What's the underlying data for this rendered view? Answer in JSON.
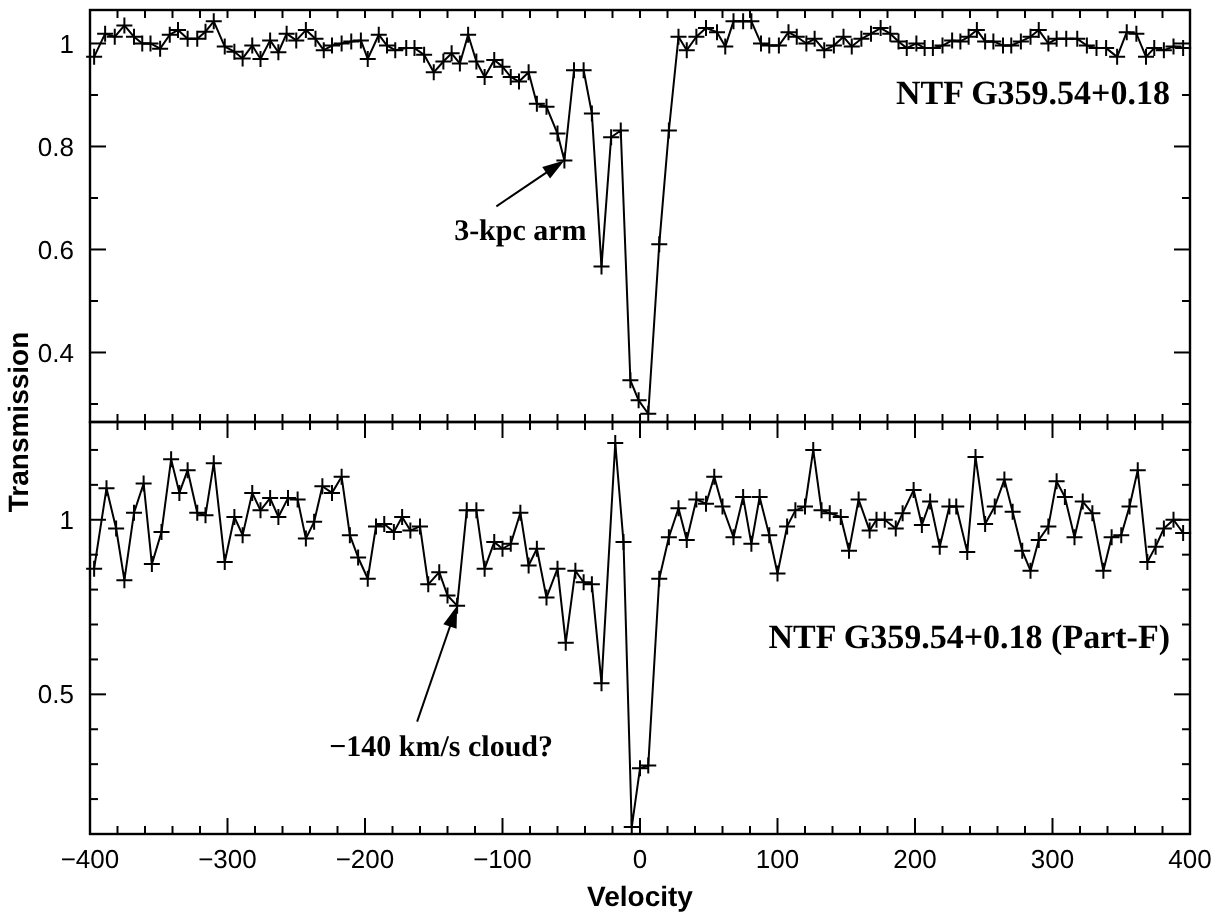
{
  "chart_data": [
    {
      "type": "line",
      "ylabel": "Transmission",
      "xlim": [
        -400,
        400
      ],
      "ylim": [
        0.265,
        1.065
      ],
      "xticks": [
        {
          "value": -400,
          "label": null
        },
        {
          "value": -380,
          "label": null
        },
        {
          "value": -360,
          "label": null
        },
        {
          "value": -340,
          "label": null
        },
        {
          "value": -320,
          "label": null
        },
        {
          "value": -300,
          "label": null
        },
        {
          "value": -280,
          "label": null
        },
        {
          "value": -260,
          "label": null
        },
        {
          "value": -240,
          "label": null
        },
        {
          "value": -220,
          "label": null
        },
        {
          "value": -200,
          "label": null
        },
        {
          "value": -180,
          "label": null
        },
        {
          "value": -160,
          "label": null
        },
        {
          "value": -140,
          "label": null
        },
        {
          "value": -120,
          "label": null
        },
        {
          "value": -100,
          "label": null
        },
        {
          "value": -80,
          "label": null
        },
        {
          "value": -60,
          "label": null
        },
        {
          "value": -40,
          "label": null
        },
        {
          "value": -20,
          "label": null
        },
        {
          "value": 0,
          "label": null
        },
        {
          "value": 20,
          "label": null
        },
        {
          "value": 40,
          "label": null
        },
        {
          "value": 60,
          "label": null
        },
        {
          "value": 80,
          "label": null
        },
        {
          "value": 100,
          "label": null
        },
        {
          "value": 120,
          "label": null
        },
        {
          "value": 140,
          "label": null
        },
        {
          "value": 160,
          "label": null
        },
        {
          "value": 180,
          "label": null
        },
        {
          "value": 200,
          "label": null
        },
        {
          "value": 220,
          "label": null
        },
        {
          "value": 240,
          "label": null
        },
        {
          "value": 260,
          "label": null
        },
        {
          "value": 280,
          "label": null
        },
        {
          "value": 300,
          "label": null
        },
        {
          "value": 320,
          "label": null
        },
        {
          "value": 340,
          "label": null
        },
        {
          "value": 360,
          "label": null
        },
        {
          "value": 380,
          "label": null
        },
        {
          "value": 400,
          "label": null
        }
      ],
      "yticks": [
        {
          "value": 0.3,
          "label": null
        },
        0.4,
        {
          "value": 0.5,
          "label": null
        },
        0.6,
        {
          "value": 0.7,
          "label": null
        },
        0.8,
        {
          "value": 0.9,
          "label": null
        },
        1
      ],
      "tick_labels": "y",
      "grid": false,
      "marker": "cross",
      "line_style": "solid",
      "annotations": [
        "NTF G359.54+0.18",
        {
          "text": "3-kpc arm",
          "x": -55,
          "y": 0.773
        }
      ],
      "series": [
        {
          "color": "#000000",
          "x": [
            -397,
            -389,
            -382,
            -375,
            -368,
            -362,
            -356,
            -349,
            -342,
            -336,
            -329,
            -322,
            -316,
            -310,
            -302,
            -295,
            -289,
            -282,
            -276,
            -269,
            -263,
            -257,
            -250,
            -243,
            -236,
            -230,
            -224,
            -217,
            -210,
            -203,
            -198,
            -190,
            -184,
            -178,
            -170,
            -164,
            -157,
            -150,
            -143,
            -137,
            -131,
            -125,
            -119,
            -113,
            -106,
            -100,
            -94,
            -88,
            -81,
            -75,
            -68,
            -60,
            -55,
            -48,
            -41,
            -35,
            -28,
            -21,
            -14,
            -7,
            -1,
            6,
            14,
            21,
            28,
            34,
            41,
            48,
            56,
            62,
            68,
            75,
            81,
            88,
            94,
            101,
            108,
            114,
            121,
            127,
            134,
            141,
            148,
            154,
            161,
            168,
            175,
            182,
            188,
            194,
            201,
            207,
            213,
            220,
            227,
            233,
            239,
            245,
            251,
            257,
            264,
            270,
            277,
            284,
            290,
            297,
            303,
            310,
            318,
            325,
            332,
            339,
            347,
            354,
            361,
            368,
            374,
            381,
            388,
            395
          ],
          "values": [
            0.974,
            1.019,
            1.013,
            1.035,
            1.013,
            1.0,
            1.0,
            0.99,
            1.017,
            1.026,
            1.009,
            1.009,
            1.023,
            1.043,
            0.994,
            0.984,
            0.971,
            0.996,
            0.97,
            1.006,
            0.983,
            1.019,
            1.006,
            1.026,
            1.009,
            0.987,
            0.996,
            1.0,
            1.004,
            1.006,
            0.97,
            1.017,
            0.996,
            0.987,
            0.991,
            0.991,
            0.978,
            0.944,
            0.965,
            0.981,
            0.961,
            1.017,
            0.965,
            0.935,
            0.968,
            0.955,
            0.935,
            0.926,
            0.944,
            0.883,
            0.877,
            0.825,
            0.773,
            0.948,
            0.948,
            0.864,
            0.567,
            0.818,
            0.831,
            0.346,
            0.307,
            0.281,
            0.61,
            0.831,
            1.013,
            0.987,
            1.013,
            1.03,
            1.022,
            0.994,
            1.043,
            1.043,
            1.043,
            1.0,
            0.996,
            0.996,
            1.022,
            1.013,
            1.0,
            1.009,
            0.987,
            0.996,
            1.013,
            0.994,
            1.009,
            1.019,
            1.03,
            1.019,
            1.004,
            0.991,
            1.0,
            0.991,
            0.991,
            0.996,
            1.006,
            1.004,
            1.013,
            1.026,
            1.004,
            1.004,
            0.996,
            0.996,
            1.004,
            1.013,
            1.026,
            1.0,
            1.009,
            1.009,
            1.009,
            0.996,
            0.991,
            0.991,
            0.974,
            1.022,
            1.019,
            0.974,
            0.991,
            0.987,
            0.994,
            0.991
          ]
        }
      ]
    },
    {
      "type": "line",
      "xlabel": "Velocity",
      "xlim": [
        -400,
        400
      ],
      "ylim": [
        0.1,
        1.28
      ],
      "xticks": [
        -400,
        {
          "value": -380,
          "label": null
        },
        {
          "value": -360,
          "label": null
        },
        {
          "value": -340,
          "label": null
        },
        {
          "value": -320,
          "label": null
        },
        -300,
        {
          "value": -280,
          "label": null
        },
        {
          "value": -260,
          "label": null
        },
        {
          "value": -240,
          "label": null
        },
        {
          "value": -220,
          "label": null
        },
        -200,
        {
          "value": -180,
          "label": null
        },
        {
          "value": -160,
          "label": null
        },
        {
          "value": -140,
          "label": null
        },
        {
          "value": -120,
          "label": null
        },
        -100,
        {
          "value": -80,
          "label": null
        },
        {
          "value": -60,
          "label": null
        },
        {
          "value": -40,
          "label": null
        },
        {
          "value": -20,
          "label": null
        },
        0,
        {
          "value": 20,
          "label": null
        },
        {
          "value": 40,
          "label": null
        },
        {
          "value": 60,
          "label": null
        },
        {
          "value": 80,
          "label": null
        },
        100,
        {
          "value": 120,
          "label": null
        },
        {
          "value": 140,
          "label": null
        },
        {
          "value": 160,
          "label": null
        },
        {
          "value": 180,
          "label": null
        },
        200,
        {
          "value": 220,
          "label": null
        },
        {
          "value": 240,
          "label": null
        },
        {
          "value": 260,
          "label": null
        },
        {
          "value": 280,
          "label": null
        },
        300,
        {
          "value": 320,
          "label": null
        },
        {
          "value": 340,
          "label": null
        },
        {
          "value": 360,
          "label": null
        },
        {
          "value": 380,
          "label": null
        },
        400
      ],
      "yticks": [
        {
          "value": 0.2,
          "label": null
        },
        {
          "value": 0.3,
          "label": null
        },
        {
          "value": 0.4,
          "label": null
        },
        0.5,
        {
          "value": 0.6,
          "label": null
        },
        {
          "value": 0.7,
          "label": null
        },
        {
          "value": 0.8,
          "label": null
        },
        {
          "value": 0.9,
          "label": null
        },
        1,
        {
          "value": 1.1,
          "label": null
        },
        {
          "value": 1.2,
          "label": null
        }
      ],
      "grid": false,
      "marker": "cross",
      "line_style": "solid",
      "annotations": [
        "NTF G359.54+0.18 (Part-F)",
        {
          "text": "−140 km/s cloud?",
          "x": -133,
          "y": 0.754
        }
      ],
      "series": [
        {
          "color": "#000000",
          "x": [
            -397,
            -388,
            -381,
            -375,
            -368,
            -361,
            -355,
            -348,
            -341,
            -335,
            -329,
            -322,
            -316,
            -310,
            -302,
            -295,
            -289,
            -282,
            -276,
            -269,
            -263,
            -256,
            -249,
            -243,
            -237,
            -231,
            -224,
            -217,
            -211,
            -205,
            -198,
            -192,
            -186,
            -179,
            -173,
            -167,
            -160,
            -154,
            -146,
            -140,
            -133,
            -126,
            -119,
            -113,
            -106,
            -100,
            -94,
            -87,
            -81,
            -75,
            -68,
            -60,
            -54,
            -47,
            -41,
            -35,
            -28,
            -18,
            -12,
            -6,
            0,
            6,
            14,
            21,
            28,
            34,
            41,
            48,
            54,
            60,
            68,
            75,
            81,
            87,
            94,
            100,
            107,
            113,
            120,
            126,
            132,
            138,
            146,
            152,
            159,
            167,
            172,
            178,
            186,
            191,
            199,
            205,
            211,
            218,
            225,
            230,
            238,
            244,
            251,
            258,
            265,
            271,
            278,
            284,
            290,
            297,
            303,
            309,
            316,
            322,
            329,
            337,
            343,
            350,
            356,
            362,
            369,
            375,
            381,
            388,
            395
          ],
          "values": [
            0.86,
            1.09,
            0.975,
            0.827,
            1.02,
            1.104,
            0.873,
            0.965,
            1.173,
            1.077,
            1.142,
            1.02,
            1.013,
            1.162,
            0.879,
            1.008,
            0.956,
            1.077,
            1.027,
            1.062,
            1.008,
            1.062,
            1.058,
            0.946,
            0.994,
            1.096,
            1.077,
            1.123,
            0.956,
            0.892,
            0.831,
            0.981,
            0.988,
            0.965,
            1.008,
            0.969,
            0.981,
            0.815,
            0.85,
            0.783,
            0.754,
            1.027,
            1.027,
            0.86,
            0.936,
            0.917,
            0.931,
            1.02,
            0.869,
            0.917,
            0.777,
            0.86,
            0.648,
            0.854,
            0.821,
            0.815,
            0.532,
            1.22,
            0.936,
            0.12,
            0.288,
            0.296,
            0.831,
            0.95,
            1.033,
            0.942,
            1.058,
            1.046,
            1.123,
            1.038,
            0.95,
            1.065,
            0.931,
            1.065,
            0.956,
            0.846,
            0.981,
            1.027,
            1.038,
            1.2,
            1.027,
            1.019,
            1.008,
            0.911,
            1.058,
            0.969,
            1.0,
            1.0,
            0.975,
            1.019,
            1.085,
            0.985,
            1.052,
            0.923,
            1.038,
            1.038,
            0.908,
            1.18,
            0.988,
            1.038,
            1.115,
            1.023,
            0.911,
            0.854,
            0.942,
            0.981,
            1.11,
            1.065,
            0.95,
            1.052,
            1.019,
            0.854,
            0.95,
            0.956,
            1.038,
            1.142,
            0.879,
            0.923,
            0.975,
            1.0,
            0.962
          ]
        }
      ]
    }
  ]
}
